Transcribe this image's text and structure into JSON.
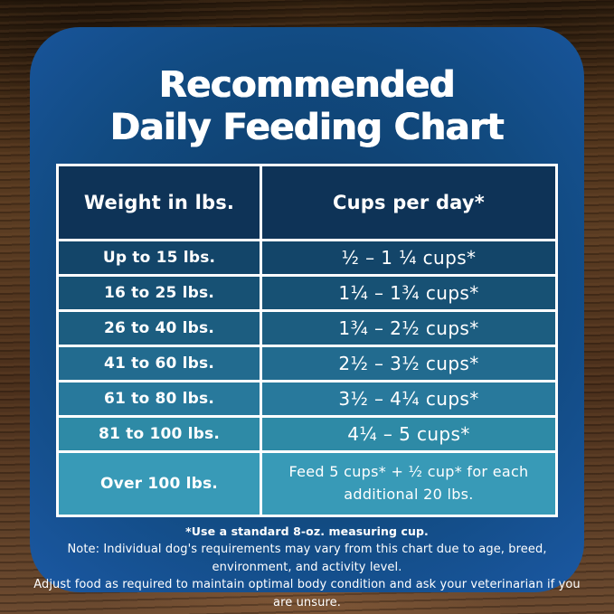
{
  "header": {
    "title_line1": "Recommended",
    "title_line2": "Daily Feeding Chart"
  },
  "chart_data": {
    "type": "table",
    "title": "Recommended Daily Feeding Chart",
    "columns": [
      "Weight in lbs.",
      "Cups per day*"
    ],
    "rows": [
      [
        "Up to 15 lbs.",
        "½ – 1 ¼ cups*"
      ],
      [
        "16 to 25 lbs.",
        "1¼ – 1¾ cups*"
      ],
      [
        "26 to 40 lbs.",
        "1¾ – 2½ cups*"
      ],
      [
        "41 to 60 lbs.",
        "2½ – 3½ cups*"
      ],
      [
        "61 to 80 lbs.",
        "3½ – 4¼ cups*"
      ],
      [
        "81 to 100 lbs.",
        "4¼ – 5 cups*"
      ],
      [
        "Over 100 lbs.",
        "Feed 5 cups* + ½ cup* for each additional 20 lbs."
      ]
    ],
    "footnotes": [
      "*Use a standard 8-oz. measuring cup.",
      "Note: Individual dog's requirements may vary from this chart due to age, breed, environment, and activity level.",
      "Adjust food as required to maintain optimal body condition and ask your veterinarian if you are unsure."
    ]
  },
  "style": {
    "card_color": "#114a80",
    "header_row_color": "#0e3357",
    "row_colors": [
      "#134569",
      "#175174",
      "#1c5d80",
      "#226b8f",
      "#28799c",
      "#2e8aa6",
      "#389ab7"
    ],
    "border_color": "#ffffff",
    "text_color": "#ffffff",
    "wood_color": "#54371f"
  }
}
